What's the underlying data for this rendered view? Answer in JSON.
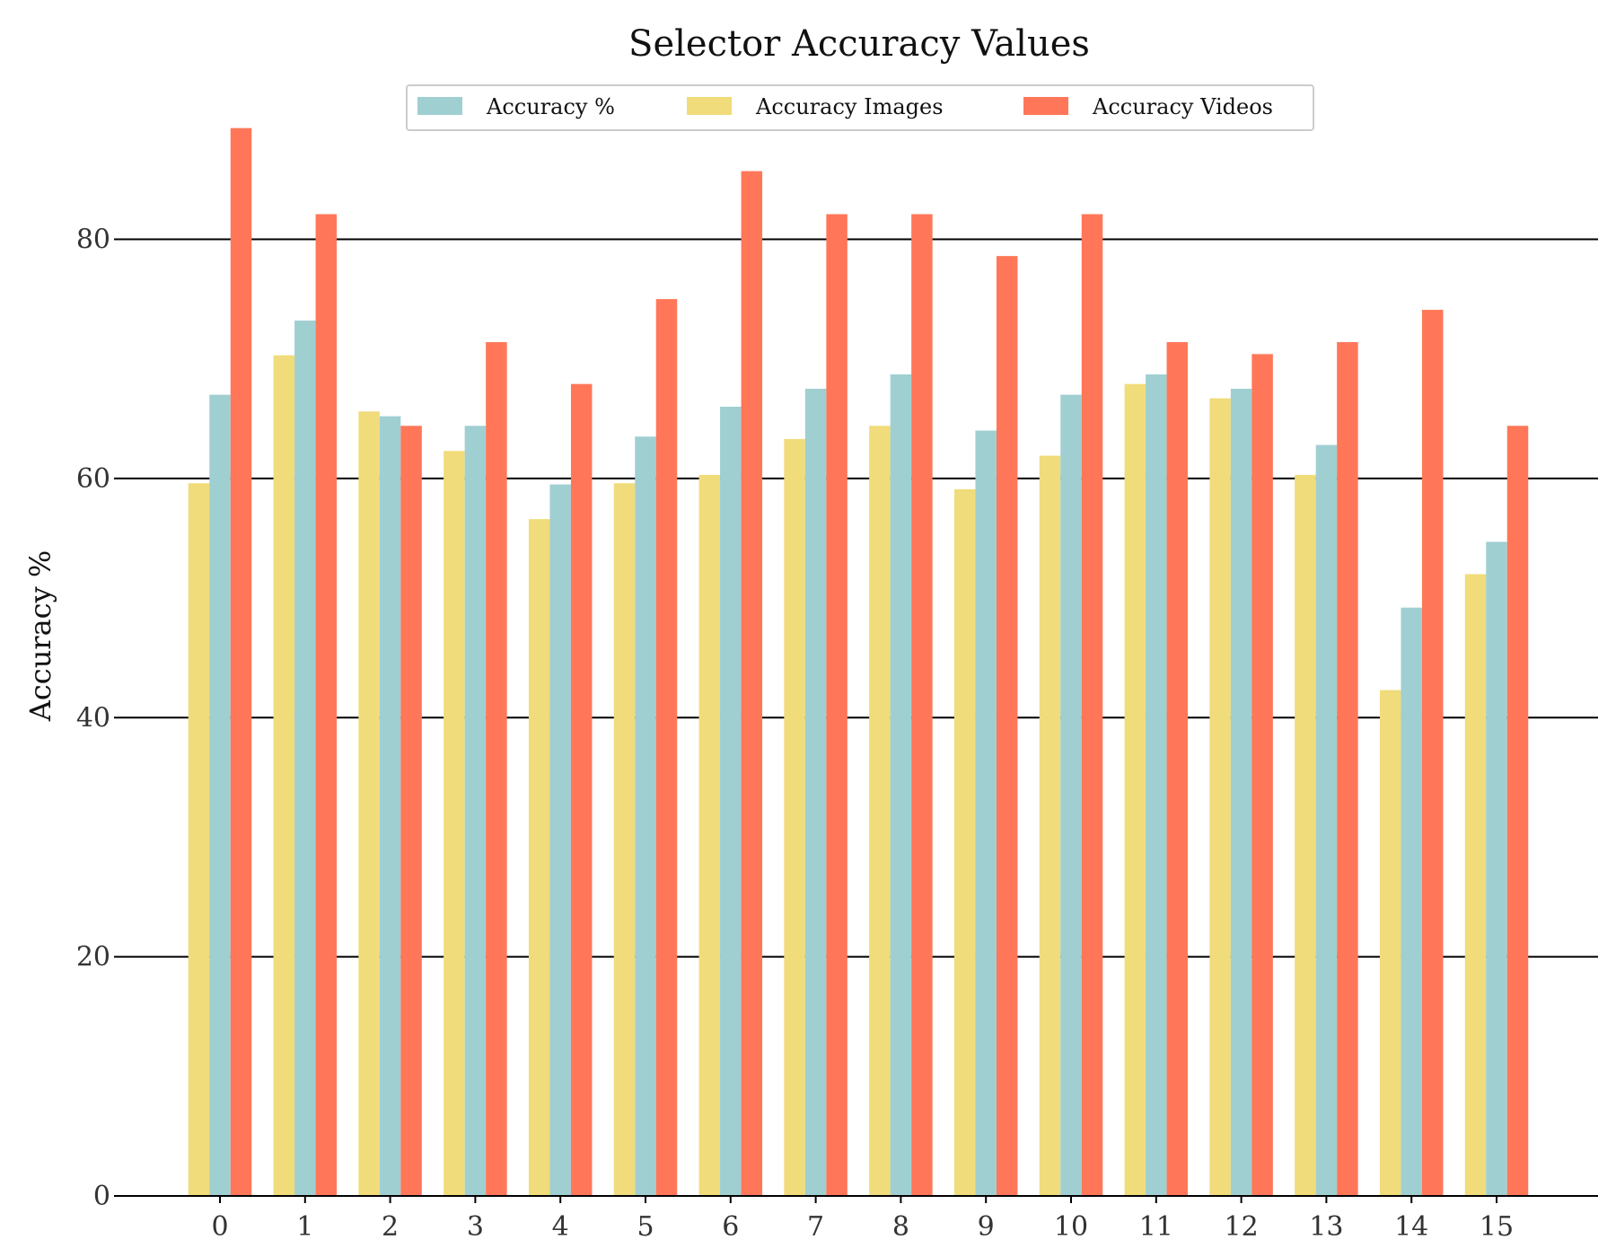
{
  "chart_data": {
    "type": "bar",
    "title": "Selector Accuracy Values",
    "xlabel": "",
    "ylabel": "Accuracy %",
    "ylim": [
      0,
      91
    ],
    "yticks": [
      0,
      20,
      40,
      60,
      80
    ],
    "grid": "horizontal",
    "legend": "top-center",
    "categories": [
      "0",
      "1",
      "2",
      "3",
      "4",
      "5",
      "6",
      "7",
      "8",
      "9",
      "10",
      "11",
      "12",
      "13",
      "14",
      "15"
    ],
    "series": [
      {
        "name": "Accuracy Images",
        "color": "#f0dc7a",
        "values": [
          59.6,
          70.3,
          65.6,
          62.3,
          56.6,
          59.6,
          60.3,
          63.3,
          64.4,
          59.1,
          61.9,
          67.9,
          66.7,
          60.3,
          42.3,
          52.0
        ]
      },
      {
        "name": "Accuracy %",
        "color": "#a0cfd2",
        "values": [
          67.0,
          73.2,
          65.2,
          64.4,
          59.5,
          63.5,
          66.0,
          67.5,
          68.7,
          64.0,
          67.0,
          68.7,
          67.5,
          62.8,
          49.2,
          54.7
        ]
      },
      {
        "name": "Accuracy Videos",
        "color": "#ff7758",
        "values": [
          89.3,
          82.1,
          64.4,
          71.4,
          67.9,
          75.0,
          85.7,
          82.1,
          82.1,
          78.6,
          82.1,
          71.4,
          70.4,
          71.4,
          74.1,
          64.4
        ]
      }
    ],
    "legend_order": [
      "Accuracy %",
      "Accuracy Images",
      "Accuracy Videos"
    ]
  }
}
